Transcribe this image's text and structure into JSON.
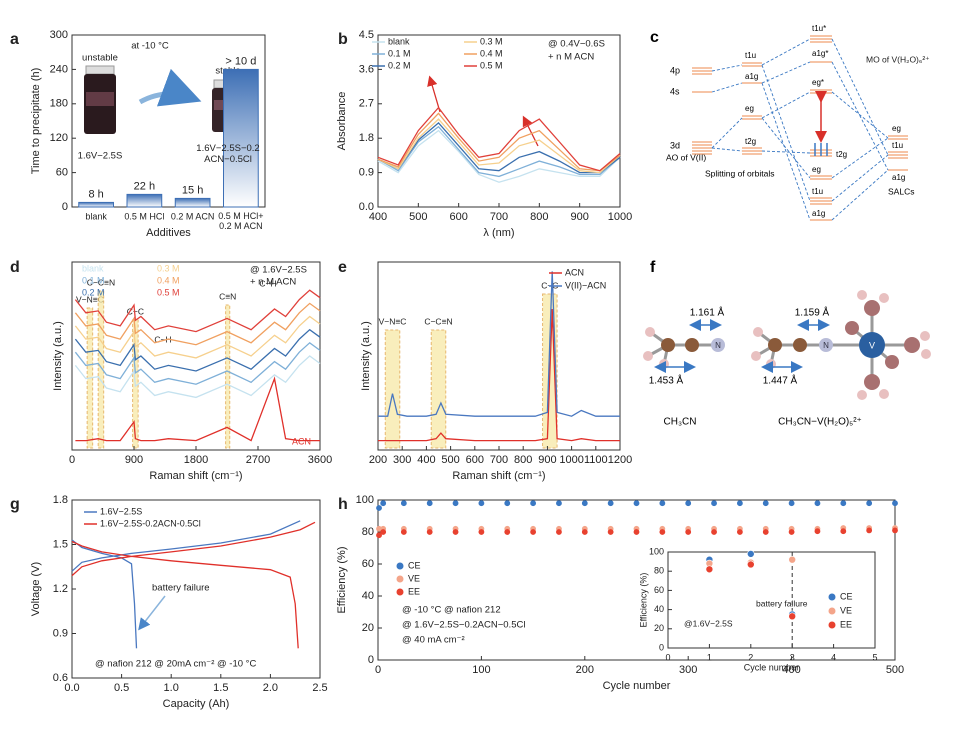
{
  "chart_data": [
    {
      "panel": "a",
      "type": "bar",
      "categories": [
        "blank",
        "0.5 M HCl",
        "0.2 M ACN",
        "0.5 M HCl+\n0.2 M ACN"
      ],
      "values": [
        8,
        22,
        15,
        240
      ],
      "value_labels": [
        "8 h",
        "22 h",
        "15 h",
        "> 10 d"
      ],
      "color": "#3d6fb5",
      "ylim": [
        0,
        300
      ],
      "yticks": [
        0,
        60,
        120,
        180,
        240,
        300
      ],
      "xlabel": "Additives",
      "ylabel": "Time to precipitate (h)",
      "annotations": [
        "at -10 °C",
        "unstable",
        "stable",
        "1.6V−2.5S",
        "1.6V−2.5S−0.2\nACN−0.5Cl"
      ]
    },
    {
      "panel": "b",
      "type": "line",
      "x": [
        400,
        450,
        500,
        550,
        600,
        650,
        700,
        750,
        800,
        850,
        900,
        950,
        1000
      ],
      "series": [
        {
          "name": "blank",
          "color": "#c5e2ef",
          "values": [
            1.2,
            0.9,
            1.6,
            2.0,
            1.45,
            0.85,
            0.65,
            0.8,
            1.0,
            0.9,
            0.8,
            0.8,
            1.3
          ]
        },
        {
          "name": "0.1 M",
          "color": "#7fb0d8",
          "values": [
            1.25,
            0.95,
            1.7,
            2.1,
            1.5,
            0.9,
            0.8,
            1.0,
            1.2,
            1.05,
            0.85,
            0.85,
            1.3
          ]
        },
        {
          "name": "0.2 M",
          "color": "#3a6fae",
          "values": [
            1.25,
            1.0,
            1.75,
            2.2,
            1.6,
            1.0,
            0.95,
            1.3,
            1.45,
            1.2,
            0.9,
            0.9,
            1.3
          ]
        },
        {
          "name": "0.3 M",
          "color": "#f6d08d",
          "values": [
            1.25,
            1.0,
            1.8,
            2.3,
            1.7,
            1.1,
            1.15,
            1.6,
            1.75,
            1.35,
            0.95,
            0.9,
            1.35
          ]
        },
        {
          "name": "0.4 M",
          "color": "#f0a060",
          "values": [
            1.25,
            1.05,
            1.9,
            2.45,
            1.8,
            1.2,
            1.3,
            1.8,
            2.0,
            1.5,
            1.0,
            0.95,
            1.35
          ]
        },
        {
          "name": "0.5 M",
          "color": "#e0403a",
          "values": [
            1.3,
            1.1,
            2.0,
            2.6,
            1.9,
            1.3,
            1.4,
            2.0,
            2.3,
            1.7,
            1.1,
            0.95,
            1.4
          ]
        }
      ],
      "xlim": [
        400,
        1000
      ],
      "xticks": [
        400,
        500,
        600,
        700,
        800,
        900,
        1000
      ],
      "ylim": [
        0,
        4.5
      ],
      "yticks": [
        {
          "value": 0,
          "label": "0.0"
        },
        0.9,
        1.8,
        2.7,
        3.6,
        4.5
      ],
      "xlabel": "λ (nm)",
      "ylabel": "Absorbance",
      "annotations": [
        "@ 0.4V−0.6S",
        "+ n M ACN"
      ]
    },
    {
      "panel": "d",
      "type": "line",
      "x": [
        50,
        200,
        380,
        500,
        700,
        900,
        920,
        1000,
        1200,
        1400,
        1800,
        2250,
        2600,
        2940,
        3100,
        3300,
        3450,
        3600
      ],
      "series": [
        {
          "name": "blank",
          "color": "#c5e2ef",
          "values": [
            4.5,
            3.8,
            3.9,
            3.3,
            3.1,
            4.2,
            3.4,
            3.6,
            2.9,
            3.1,
            2.8,
            3.5,
            2.9,
            4,
            3.6,
            4.5,
            5,
            4.6
          ]
        },
        {
          "name": "0.1 M",
          "color": "#7fb0d8",
          "values": [
            5.2,
            4.5,
            4.6,
            4,
            3.8,
            4.9,
            4.1,
            4.3,
            3.6,
            3.8,
            3.5,
            4.2,
            3.6,
            4.7,
            4.3,
            5.2,
            5.7,
            5.3
          ]
        },
        {
          "name": "0.2 M",
          "color": "#3a6fae",
          "values": [
            5.9,
            5.2,
            5.3,
            4.7,
            4.5,
            5.6,
            4.8,
            5,
            4.3,
            4.5,
            4.2,
            4.9,
            4.3,
            5.4,
            5,
            5.9,
            6.4,
            6
          ]
        },
        {
          "name": "0.3 M",
          "color": "#f6d08d",
          "values": [
            6.6,
            5.9,
            6,
            5.4,
            5.2,
            6.3,
            5.5,
            5.7,
            5,
            5.2,
            4.9,
            5.6,
            5,
            6.1,
            5.7,
            6.6,
            7.1,
            6.7
          ]
        },
        {
          "name": "0.4 M",
          "color": "#f0a060",
          "values": [
            7.3,
            6.6,
            6.7,
            6.1,
            5.9,
            7,
            6.2,
            6.4,
            5.7,
            5.9,
            5.6,
            6.3,
            5.7,
            6.8,
            6.4,
            7.3,
            7.8,
            7.4
          ]
        },
        {
          "name": "0.5 M",
          "color": "#e0403a",
          "values": [
            8,
            7.3,
            7.4,
            6.8,
            6.6,
            7.7,
            6.9,
            7.1,
            6.4,
            6.6,
            6.3,
            7,
            6.4,
            7.5,
            7.1,
            8,
            8.5,
            8.1
          ]
        },
        {
          "name": "ACN",
          "color": "#e0302a",
          "values": [
            0.5,
            0.5,
            0.6,
            0.5,
            0.5,
            1.5,
            0.6,
            0.5,
            0.5,
            0.6,
            0.5,
            1.2,
            0.5,
            3.8,
            0.6,
            0.5,
            0.5,
            0.5
          ]
        }
      ],
      "xlim": [
        0,
        3600
      ],
      "xticks": [
        0,
        900,
        1800,
        2700,
        3600
      ],
      "ylim": [
        0,
        10
      ],
      "xlabel": "Raman shift (cm⁻¹)",
      "ylabel": "Intensity (a.u.)",
      "annotations": [
        "@ 1.6V−2.5S",
        "+ n M ACN"
      ],
      "bands": [
        {
          "range": [
            220,
            300
          ],
          "label": "V−N≡C"
        },
        {
          "range": [
            380,
            460
          ],
          "label": "C−C≡N"
        },
        {
          "range": [
            880,
            960
          ],
          "label": "C−C"
        },
        {
          "range": [
            2230,
            2290
          ],
          "label": "C≡N"
        }
      ],
      "peak_labels": [
        "C−H",
        "C−H"
      ]
    },
    {
      "panel": "e",
      "type": "line",
      "x": [
        200,
        240,
        260,
        280,
        320,
        400,
        440,
        460,
        480,
        600,
        850,
        900,
        920,
        940,
        1000,
        1040,
        1100,
        1200
      ],
      "series": [
        {
          "name": "ACN",
          "color": "#e0302a",
          "values": [
            0.5,
            0.5,
            0.5,
            0.5,
            0.5,
            0.5,
            0.6,
            0.9,
            0.6,
            0.5,
            0.5,
            0.6,
            7.5,
            0.6,
            0.5,
            0.6,
            0.5,
            0.5
          ]
        },
        {
          "name": "V(II)−ACN",
          "color": "#4a78c0",
          "values": [
            1.8,
            1.8,
            3.0,
            1.9,
            1.8,
            1.8,
            1.9,
            2.5,
            1.9,
            1.8,
            1.8,
            2.0,
            9.5,
            2.0,
            1.8,
            2.1,
            1.8,
            1.8
          ]
        }
      ],
      "xlim": [
        200,
        1200
      ],
      "xticks": [
        200,
        300,
        400,
        500,
        600,
        700,
        800,
        900,
        1000,
        1100,
        1200
      ],
      "ylim": [
        0,
        10
      ],
      "xlabel": "Raman shift (cm⁻¹)",
      "ylabel": "Intensity (a.u.)",
      "bands": [
        {
          "range": [
            230,
            290
          ],
          "label": "V−N≡C"
        },
        {
          "range": [
            420,
            480
          ],
          "label": "C−C≡N"
        },
        {
          "range": [
            880,
            940
          ],
          "label": "C−C"
        }
      ]
    },
    {
      "panel": "g",
      "type": "line",
      "series": [
        {
          "name": "1.6V−2.5S",
          "color": "#4a78c0",
          "x": [
            0,
            0.1,
            0.3,
            0.6,
            1.0,
            1.5,
            2.0,
            2.3,
            null,
            0,
            0.1,
            0.3,
            0.5,
            0.6,
            0.63,
            0.65
          ],
          "values": [
            1.32,
            1.38,
            1.41,
            1.44,
            1.47,
            1.51,
            1.57,
            1.66,
            null,
            1.53,
            1.48,
            1.44,
            1.41,
            1.37,
            1.1,
            0.8
          ]
        },
        {
          "name": "1.6V−2.5S-0.2ACN-0.5Cl",
          "color": "#e0302a",
          "x": [
            0,
            0.1,
            0.3,
            0.6,
            1.0,
            1.5,
            2.0,
            2.3,
            2.45,
            null,
            0,
            0.1,
            0.3,
            0.6,
            1.0,
            1.5,
            2.0,
            2.2,
            2.25,
            2.28
          ],
          "values": [
            1.29,
            1.35,
            1.39,
            1.42,
            1.45,
            1.49,
            1.55,
            1.6,
            1.65,
            null,
            1.52,
            1.49,
            1.45,
            1.42,
            1.39,
            1.36,
            1.33,
            1.28,
            1.1,
            0.8
          ]
        }
      ],
      "xlim": [
        0,
        2.5
      ],
      "xticks": [
        {
          "value": 0,
          "label": "0.0"
        },
        0.5,
        {
          "value": 1,
          "label": "1.0"
        },
        1.5,
        {
          "value": 2,
          "label": "2.0"
        },
        2.5
      ],
      "ylim": [
        0.6,
        1.8
      ],
      "yticks": [
        0.6,
        0.9,
        1.2,
        1.5,
        1.8
      ],
      "xlabel": "Capacity (Ah)",
      "ylabel": "Voltage (V)",
      "annotations": [
        "battery failure",
        "@ nafion 212 @ 20mA cm⁻²  @ -10 °C"
      ]
    },
    {
      "panel": "h",
      "type": "scatter",
      "x": [
        1,
        5,
        25,
        50,
        75,
        100,
        125,
        150,
        175,
        200,
        225,
        250,
        275,
        300,
        325,
        350,
        375,
        400,
        425,
        450,
        475,
        500
      ],
      "series": [
        {
          "name": "CE",
          "color": "#3a78c3",
          "values": [
            95,
            98,
            98,
            98,
            98,
            98,
            98,
            98,
            98,
            98,
            98,
            98,
            98,
            98,
            98,
            98,
            98,
            98,
            98,
            98,
            98,
            98
          ]
        },
        {
          "name": "VE",
          "color": "#f4a58a",
          "values": [
            82,
            82,
            82,
            82,
            82,
            82,
            82,
            82,
            82,
            82,
            82,
            82,
            82,
            82,
            82,
            82,
            82,
            82,
            82,
            82.5,
            82.5,
            82.5
          ]
        },
        {
          "name": "EE",
          "color": "#e8412f",
          "values": [
            78,
            80,
            80,
            80,
            80,
            80,
            80,
            80,
            80,
            80,
            80,
            80,
            80,
            80,
            80,
            80,
            80,
            80,
            80.5,
            80.5,
            81,
            81
          ]
        }
      ],
      "xlim": [
        0,
        500
      ],
      "xticks": [
        0,
        100,
        200,
        300,
        400,
        500
      ],
      "ylim": [
        0,
        100
      ],
      "yticks": [
        0,
        20,
        40,
        60,
        80,
        100
      ],
      "xlabel": "Cycle number",
      "ylabel": "Efficiency (%)",
      "annotations": [
        "@ -10 °C @ nafion 212",
        "@ 1.6V−2.5S−0.2ACN−0.5Cl",
        "@ 40 mA cm⁻²"
      ]
    },
    {
      "type": "scatter",
      "x": [
        1,
        2,
        3
      ],
      "series": [
        {
          "name": "CE",
          "color": "#3a78c3",
          "values": [
            92,
            98,
            35
          ]
        },
        {
          "name": "VE",
          "color": "#f4a58a",
          "values": [
            88,
            89,
            92
          ]
        },
        {
          "name": "EE",
          "color": "#e8412f",
          "values": [
            82,
            87,
            33
          ]
        }
      ],
      "xlim": [
        0,
        5
      ],
      "xticks": [
        0,
        1,
        2,
        3,
        4,
        5
      ],
      "ylim": [
        0,
        100
      ],
      "yticks": [
        0,
        20,
        40,
        60,
        80,
        100
      ],
      "xlabel": "Cycle number",
      "ylabel": "Efficiency (%)",
      "vline": 3,
      "annotations": [
        "battery failure",
        "@1.6V−2.5S"
      ]
    }
  ],
  "orbital_diagram": {
    "panel": "c",
    "title": "MO of V(H₂O)₆²⁺",
    "ao": [
      "4p",
      "4s",
      "3d"
    ],
    "ao_caption": "AO of V(II)",
    "split": [
      "t1u",
      "a1g",
      "eg",
      "t2g"
    ],
    "split_caption": "Splitting of orbitals",
    "mo": [
      "t1u*",
      "a1g*",
      "eg*",
      "t2g",
      "eg",
      "t1u",
      "a1g"
    ],
    "salcs": [
      "eg",
      "t1u",
      "a1g"
    ],
    "salcs_caption": "SALCs"
  },
  "molecule_diagram": {
    "panel": "f",
    "bonds": [
      "1.161 Å",
      "1.453 Å",
      "1.159 Å",
      "1.447 Å"
    ],
    "captions": [
      "CH₃CN",
      "CH₃CN−V(H₂O)₅²⁺"
    ]
  }
}
